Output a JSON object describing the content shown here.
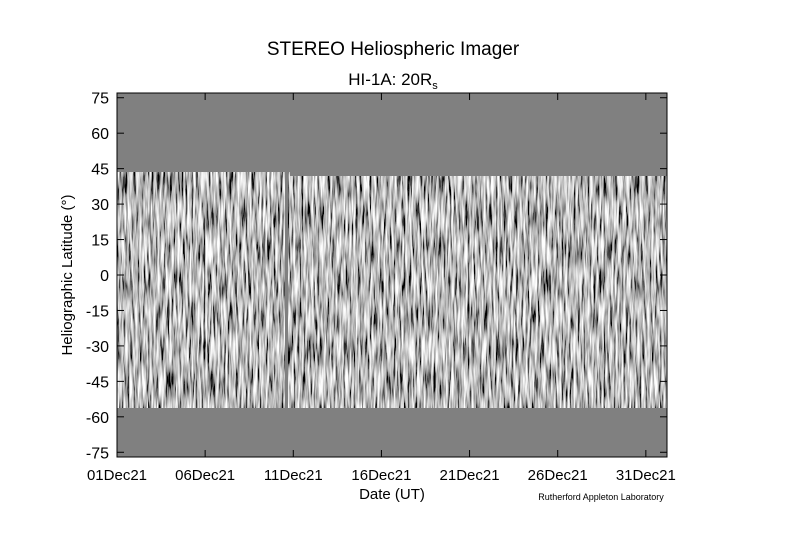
{
  "chart_data": {
    "type": "image",
    "title": "STEREO Heliospheric Imager",
    "subtitle": "HI-1A: 20R",
    "subtitle_sub": "s",
    "ylabel": "Heliographic Latitude (°)",
    "xlabel": "Date (UT)",
    "credit": "Rutherford Appleton Laboratory",
    "ylim": [
      -77,
      77
    ],
    "yticks": [
      75,
      60,
      45,
      30,
      15,
      0,
      -15,
      -30,
      -45,
      -60,
      -75
    ],
    "xlim": [
      1,
      32.2
    ],
    "xticks": [
      {
        "value": 1,
        "label": "01Dec21"
      },
      {
        "value": 6,
        "label": "06Dec21"
      },
      {
        "value": 11,
        "label": "11Dec21"
      },
      {
        "value": 16,
        "label": "16Dec21"
      },
      {
        "value": 21,
        "label": "21Dec21"
      },
      {
        "value": 26,
        "label": "26Dec21"
      },
      {
        "value": 31,
        "label": "31Dec21"
      }
    ],
    "color": "#808080"
  }
}
